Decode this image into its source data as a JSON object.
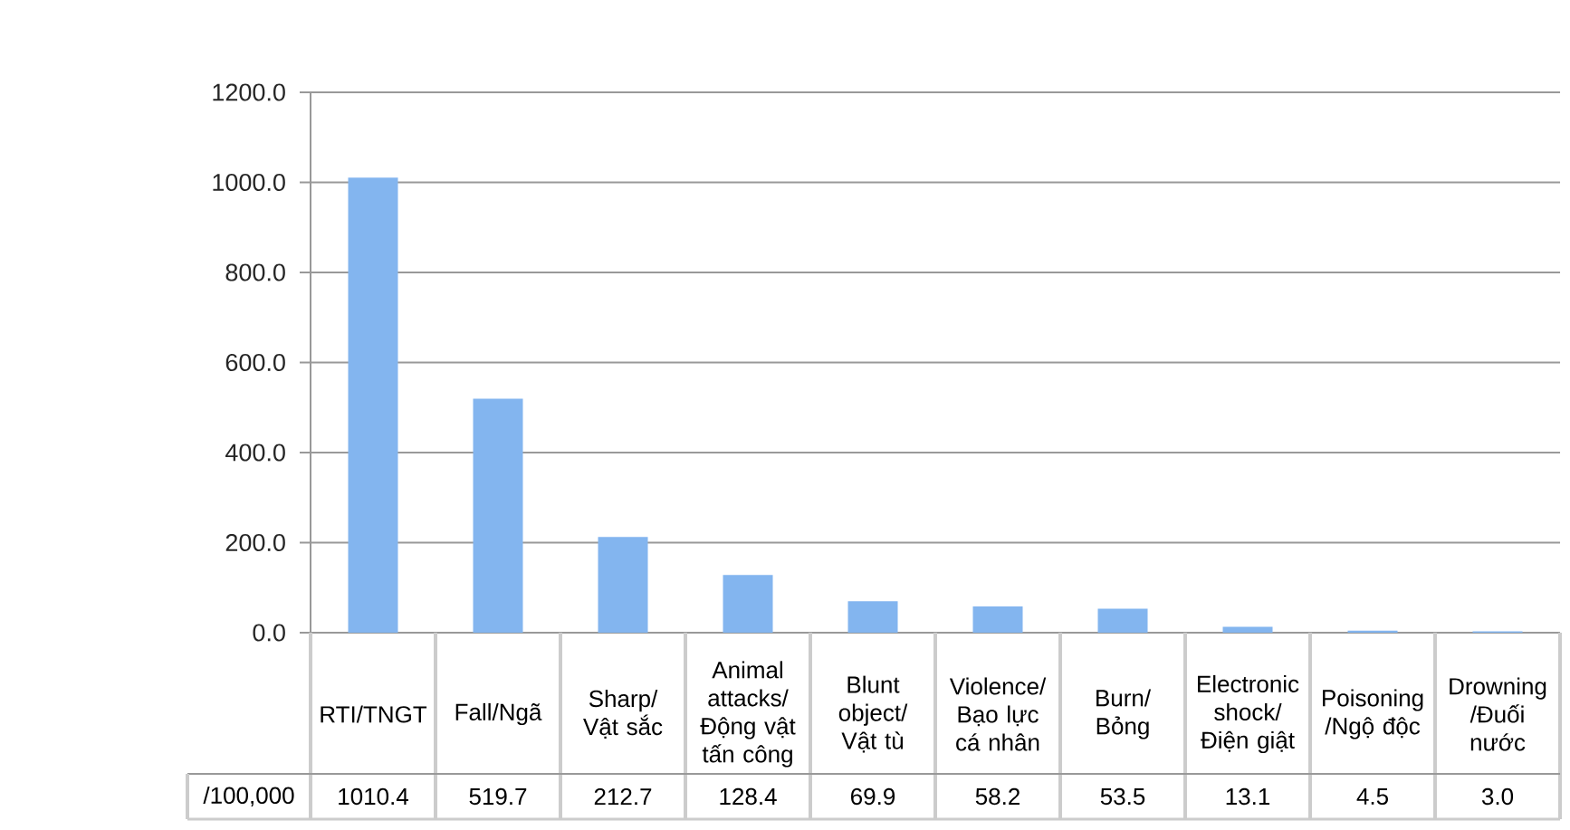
{
  "chart_data": {
    "type": "bar",
    "categories": [
      "RTI/TNGT",
      "Fall/Ngã",
      "Sharp/ Vật sắc",
      "Animal attacks/ Động vật tấn công",
      "Blunt object/ Vật tù",
      "Violence/ Bạo lực cá nhân",
      "Burn/ Bỏng",
      "Electronic shock/ Điện giật",
      "Poisoning /Ngộ độc",
      "Drowning /Đuối nước"
    ],
    "values": [
      1010.4,
      519.7,
      212.7,
      128.4,
      69.9,
      58.2,
      53.5,
      13.1,
      4.5,
      3.0
    ],
    "value_labels": [
      "1010.4",
      "519.7",
      "212.7",
      "128.4",
      "69.9",
      "58.2",
      "53.5",
      "13.1",
      "4.5",
      "3.0"
    ],
    "color": "#83b5ef",
    "ylim": [
      0,
      1200
    ],
    "yticks": [
      {
        "value": 0,
        "label": "0.0"
      },
      {
        "value": 200,
        "label": "200.0"
      },
      {
        "value": 400,
        "label": "400.0"
      },
      {
        "value": 600,
        "label": "600.0"
      },
      {
        "value": 800,
        "label": "800.0"
      },
      {
        "value": 1000,
        "label": "1000.0"
      },
      {
        "value": 1200,
        "label": "1200.0"
      }
    ],
    "grid": "y",
    "annotations": [
      "/100,000"
    ]
  }
}
